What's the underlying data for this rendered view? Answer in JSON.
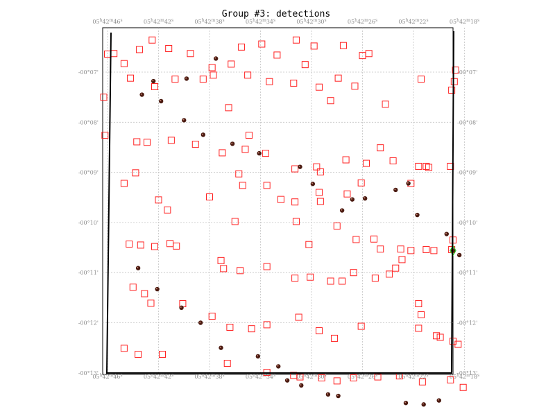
{
  "chart_data": {
    "type": "scatter",
    "title": "Group #3: detections",
    "x_ticks": [
      {
        "h": "05",
        "m": "42",
        "s": "46"
      },
      {
        "h": "05",
        "m": "42",
        "s": "42"
      },
      {
        "h": "05",
        "m": "42",
        "s": "38"
      },
      {
        "h": "05",
        "m": "42",
        "s": "34"
      },
      {
        "h": "05",
        "m": "42",
        "s": "30"
      },
      {
        "h": "05",
        "m": "42",
        "s": "26"
      },
      {
        "h": "05",
        "m": "42",
        "s": "22"
      },
      {
        "h": "05",
        "m": "42",
        "s": "18"
      }
    ],
    "y_ticks": [
      "-00°07'",
      "-00°08'",
      "-00°09'",
      "-00°10'",
      "-00°11'",
      "-00°12'",
      "-00°13'"
    ],
    "grid": true,
    "colors": {
      "detection_box": "#ff2020",
      "source_dot": "#4a1a10",
      "highlight": "#22cc22",
      "frame": "#000000",
      "grid": "#c4c4c4",
      "tick_text": "#8c8c8c"
    },
    "series": [
      {
        "marker": "open-square",
        "points": [
          [
            46.0,
            -6.64
          ],
          [
            45.5,
            -6.63
          ],
          [
            44.7,
            -6.83
          ],
          [
            43.5,
            -6.55
          ],
          [
            42.5,
            -6.36
          ],
          [
            41.2,
            -6.53
          ],
          [
            39.5,
            -6.63
          ],
          [
            37.8,
            -6.91
          ],
          [
            36.3,
            -6.84
          ],
          [
            35.5,
            -6.5
          ],
          [
            33.9,
            -6.44
          ],
          [
            32.7,
            -6.66
          ],
          [
            31.2,
            -6.36
          ],
          [
            30.5,
            -6.85
          ],
          [
            29.8,
            -6.48
          ],
          [
            27.5,
            -6.47
          ],
          [
            26.0,
            -6.67
          ],
          [
            25.5,
            -6.63
          ],
          [
            46.3,
            -7.5
          ],
          [
            44.2,
            -7.12
          ],
          [
            42.3,
            -7.29
          ],
          [
            40.7,
            -7.14
          ],
          [
            38.5,
            -7.14
          ],
          [
            37.7,
            -7.06
          ],
          [
            36.5,
            -7.71
          ],
          [
            35.0,
            -7.06
          ],
          [
            33.3,
            -7.19
          ],
          [
            31.4,
            -7.22
          ],
          [
            29.4,
            -7.3
          ],
          [
            28.5,
            -7.57
          ],
          [
            27.9,
            -7.12
          ],
          [
            26.6,
            -7.28
          ],
          [
            24.2,
            -7.64
          ],
          [
            21.4,
            -7.14
          ],
          [
            19.0,
            -7.36
          ],
          [
            18.8,
            -7.19
          ],
          [
            18.7,
            -6.96
          ],
          [
            46.2,
            -8.26
          ],
          [
            43.7,
            -8.39
          ],
          [
            42.9,
            -8.4
          ],
          [
            41.0,
            -8.36
          ],
          [
            39.1,
            -8.44
          ],
          [
            37.0,
            -8.61
          ],
          [
            35.2,
            -8.54
          ],
          [
            34.9,
            -8.26
          ],
          [
            33.6,
            -8.62
          ],
          [
            31.3,
            -8.93
          ],
          [
            29.6,
            -8.89
          ],
          [
            29.3,
            -8.99
          ],
          [
            27.3,
            -8.75
          ],
          [
            25.7,
            -8.82
          ],
          [
            24.6,
            -8.51
          ],
          [
            23.6,
            -8.77
          ],
          [
            21.6,
            -8.88
          ],
          [
            21.0,
            -8.88
          ],
          [
            20.8,
            -8.9
          ],
          [
            19.1,
            -8.88
          ],
          [
            44.7,
            -9.22
          ],
          [
            43.8,
            -9.01
          ],
          [
            42.0,
            -9.55
          ],
          [
            41.3,
            -9.75
          ],
          [
            38.0,
            -9.49
          ],
          [
            35.7,
            -9.03
          ],
          [
            35.4,
            -9.26
          ],
          [
            33.5,
            -9.26
          ],
          [
            32.4,
            -9.54
          ],
          [
            31.3,
            -9.59
          ],
          [
            29.4,
            -9.4
          ],
          [
            29.3,
            -9.58
          ],
          [
            27.2,
            -9.43
          ],
          [
            26.1,
            -9.21
          ],
          [
            22.2,
            -9.22
          ],
          [
            36.0,
            -9.98
          ],
          [
            31.2,
            -9.98
          ],
          [
            30.2,
            -10.44
          ],
          [
            28.0,
            -10.07
          ],
          [
            26.5,
            -10.34
          ],
          [
            25.1,
            -10.33
          ],
          [
            24.6,
            -10.53
          ],
          [
            23.0,
            -10.53
          ],
          [
            22.2,
            -10.56
          ],
          [
            21.0,
            -10.54
          ],
          [
            20.4,
            -10.56
          ],
          [
            19.0,
            -10.54
          ],
          [
            18.9,
            -10.35
          ],
          [
            44.3,
            -10.43
          ],
          [
            43.4,
            -10.45
          ],
          [
            42.3,
            -10.48
          ],
          [
            41.1,
            -10.42
          ],
          [
            40.6,
            -10.47
          ],
          [
            37.1,
            -10.76
          ],
          [
            36.9,
            -10.92
          ],
          [
            35.6,
            -10.96
          ],
          [
            33.5,
            -10.88
          ],
          [
            31.3,
            -11.11
          ],
          [
            30.1,
            -11.09
          ],
          [
            28.5,
            -11.17
          ],
          [
            27.6,
            -11.17
          ],
          [
            26.7,
            -11.0
          ],
          [
            25.0,
            -11.11
          ],
          [
            23.9,
            -11.03
          ],
          [
            23.4,
            -10.91
          ],
          [
            22.9,
            -10.74
          ],
          [
            21.6,
            -11.62
          ],
          [
            21.4,
            -11.84
          ],
          [
            44.0,
            -11.29
          ],
          [
            43.1,
            -11.42
          ],
          [
            42.6,
            -11.61
          ],
          [
            40.1,
            -11.62
          ],
          [
            37.8,
            -11.87
          ],
          [
            36.4,
            -12.09
          ],
          [
            34.7,
            -12.12
          ],
          [
            33.5,
            -12.04
          ],
          [
            31.0,
            -11.89
          ],
          [
            29.4,
            -12.16
          ],
          [
            28.2,
            -12.31
          ],
          [
            26.1,
            -12.07
          ],
          [
            21.6,
            -12.11
          ],
          [
            20.2,
            -12.26
          ],
          [
            19.9,
            -12.29
          ],
          [
            18.9,
            -12.37
          ],
          [
            18.5,
            -12.43
          ],
          [
            44.7,
            -12.51
          ],
          [
            43.6,
            -12.63
          ],
          [
            41.7,
            -12.63
          ],
          [
            36.6,
            -12.81
          ],
          [
            33.5,
            -12.99
          ],
          [
            31.4,
            -13.05
          ],
          [
            30.9,
            -13.08
          ],
          [
            29.2,
            -13.1
          ],
          [
            28.0,
            -13.16
          ],
          [
            26.7,
            -13.1
          ],
          [
            24.8,
            -13.08
          ],
          [
            23.1,
            -13.06
          ],
          [
            21.3,
            -13.18
          ],
          [
            19.1,
            -13.14
          ],
          [
            18.1,
            -13.29
          ]
        ]
      },
      {
        "marker": "dot",
        "points": [
          [
            37.5,
            -6.73
          ],
          [
            39.8,
            -7.13
          ],
          [
            42.4,
            -7.18
          ],
          [
            43.3,
            -7.45
          ],
          [
            41.8,
            -7.58
          ],
          [
            40.0,
            -7.96
          ],
          [
            38.5,
            -8.25
          ],
          [
            36.2,
            -8.43
          ],
          [
            34.1,
            -8.62
          ],
          [
            30.9,
            -8.89
          ],
          [
            29.9,
            -9.23
          ],
          [
            27.6,
            -9.76
          ],
          [
            26.8,
            -9.54
          ],
          [
            25.8,
            -9.52
          ],
          [
            23.4,
            -9.35
          ],
          [
            22.4,
            -9.22
          ],
          [
            21.7,
            -9.85
          ],
          [
            19.4,
            -10.23
          ],
          [
            18.9,
            -10.56
          ],
          [
            18.4,
            -10.65
          ],
          [
            43.6,
            -10.91
          ],
          [
            42.1,
            -11.33
          ],
          [
            40.2,
            -11.7
          ],
          [
            38.7,
            -12.0
          ],
          [
            37.1,
            -12.5
          ],
          [
            34.2,
            -12.67
          ],
          [
            32.6,
            -12.87
          ],
          [
            31.9,
            -13.15
          ],
          [
            30.8,
            -13.25
          ],
          [
            28.7,
            -13.43
          ],
          [
            27.9,
            -13.46
          ],
          [
            22.6,
            -13.6
          ],
          [
            21.2,
            -13.63
          ],
          [
            20.0,
            -13.55
          ]
        ]
      }
    ]
  }
}
